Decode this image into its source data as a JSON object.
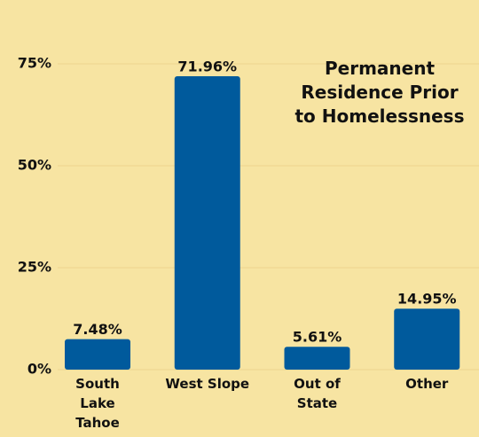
{
  "chart_data": {
    "type": "bar",
    "title": "Permanent Residence Prior to Homelessness",
    "categories": [
      "South Lake Tahoe",
      "West Slope",
      "Out of State",
      "Other"
    ],
    "values": [
      7.48,
      71.96,
      5.61,
      14.95
    ],
    "value_labels": [
      "7.48%",
      "71.96%",
      "5.61%",
      "14.95%"
    ],
    "color": "#005a9c",
    "ylim": [
      0,
      75
    ],
    "yticks": [
      {
        "value": 0,
        "label": "0%"
      },
      {
        "value": 25,
        "label": "25%"
      },
      {
        "value": 50,
        "label": "50%"
      },
      {
        "value": 75,
        "label": "75%"
      }
    ],
    "grid": true
  }
}
